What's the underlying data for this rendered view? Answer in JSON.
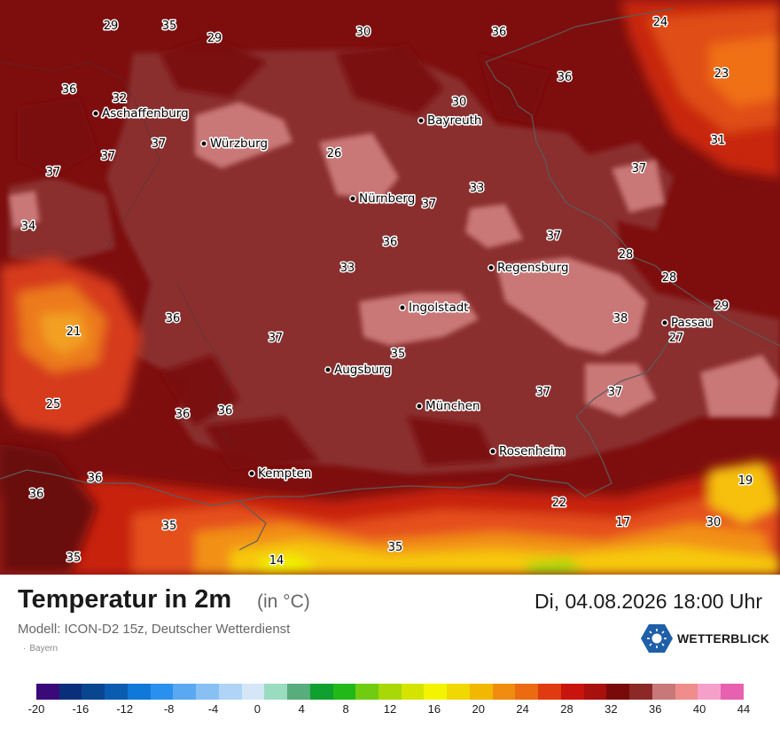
{
  "map": {
    "temperature_labels": [
      {
        "value": "29"
      },
      {
        "value": "35"
      },
      {
        "value": "29"
      },
      {
        "value": "30"
      },
      {
        "value": "36"
      },
      {
        "value": "24"
      },
      {
        "value": "36"
      },
      {
        "value": "32"
      },
      {
        "value": "36"
      },
      {
        "value": "23"
      },
      {
        "value": "30"
      },
      {
        "value": "37"
      },
      {
        "value": "37"
      },
      {
        "value": "26"
      },
      {
        "value": "31"
      },
      {
        "value": "37"
      },
      {
        "value": "37"
      },
      {
        "value": "34"
      },
      {
        "value": "33"
      },
      {
        "value": "37"
      },
      {
        "value": "36"
      },
      {
        "value": "37"
      },
      {
        "value": "28"
      },
      {
        "value": "33"
      },
      {
        "value": "28"
      },
      {
        "value": "29"
      },
      {
        "value": "21"
      },
      {
        "value": "36"
      },
      {
        "value": "37"
      },
      {
        "value": "38"
      },
      {
        "value": "27"
      },
      {
        "value": "35"
      },
      {
        "value": "37"
      },
      {
        "value": "37"
      },
      {
        "value": "25"
      },
      {
        "value": "36"
      },
      {
        "value": "36"
      },
      {
        "value": "36"
      },
      {
        "value": "36"
      },
      {
        "value": "19"
      },
      {
        "value": "22"
      },
      {
        "value": "17"
      },
      {
        "value": "30"
      },
      {
        "value": "35"
      },
      {
        "value": "35"
      },
      {
        "value": "35"
      },
      {
        "value": "14"
      }
    ],
    "cities": [
      {
        "name": "Aschaffenburg"
      },
      {
        "name": "Würzburg"
      },
      {
        "name": "Bayreuth"
      },
      {
        "name": "Nürnberg"
      },
      {
        "name": "Regensburg"
      },
      {
        "name": "Ingolstadt"
      },
      {
        "name": "Passau"
      },
      {
        "name": "Augsburg"
      },
      {
        "name": "München"
      },
      {
        "name": "Rosenheim"
      },
      {
        "name": "Kempten"
      }
    ]
  },
  "footer": {
    "title": "Temperatur in 2m",
    "unit": "(in °C)",
    "datetime": "Di, 04.08.2026 18:00 Uhr",
    "model": "Modell: ICON-D2 15z, Deutscher Wetterdienst",
    "region": "Bayern",
    "brand": "WETTERBLICK"
  },
  "legend": {
    "colors": [
      "#3a0a7a",
      "#0a2f7a",
      "#0a4590",
      "#0a5cb0",
      "#1078d8",
      "#2a90ee",
      "#5aa8f2",
      "#88c0f4",
      "#b0d4f6",
      "#d4e6f8",
      "#9adcc0",
      "#58ad7c",
      "#10a030",
      "#22b818",
      "#70cc10",
      "#a8d808",
      "#d4e400",
      "#f4f400",
      "#f0d800",
      "#f2b800",
      "#f08c10",
      "#ec6a10",
      "#e03a10",
      "#c8140c",
      "#a8100e",
      "#780a0a",
      "#8c2828",
      "#c87878",
      "#f08c8c",
      "#f4a0c8",
      "#e860b0"
    ],
    "ticks": [
      "-20",
      "-16",
      "-12",
      "-8",
      "-4",
      "0",
      "4",
      "8",
      "12",
      "16",
      "20",
      "24",
      "28",
      "32",
      "36",
      "40",
      "44"
    ]
  }
}
